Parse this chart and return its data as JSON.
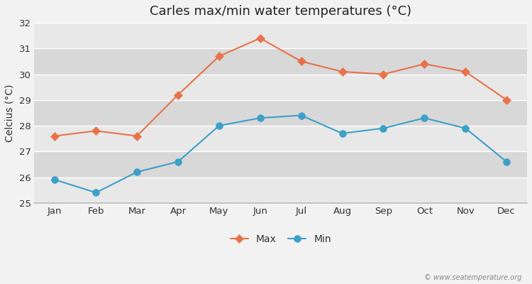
{
  "title": "Carles max/min water temperatures (°C)",
  "ylabel": "Celcius (°C)",
  "months": [
    "Jan",
    "Feb",
    "Mar",
    "Apr",
    "May",
    "Jun",
    "Jul",
    "Aug",
    "Sep",
    "Oct",
    "Nov",
    "Dec"
  ],
  "max_values": [
    27.6,
    27.8,
    27.6,
    29.2,
    30.7,
    31.4,
    30.5,
    30.1,
    30.0,
    30.4,
    30.1,
    29.0
  ],
  "min_values": [
    25.9,
    25.4,
    26.2,
    26.6,
    28.0,
    28.3,
    28.4,
    27.7,
    27.9,
    28.3,
    27.9,
    26.6
  ],
  "max_color": "#e8724a",
  "min_color": "#3ca0c8",
  "ylim": [
    25.0,
    32.0
  ],
  "yticks": [
    25,
    26,
    27,
    28,
    29,
    30,
    31,
    32
  ],
  "fig_bg_color": "#f2f2f2",
  "band_colors": [
    "#e8e8e8",
    "#d8d8d8"
  ],
  "grid_color": "#ffffff",
  "legend_labels": [
    "Max",
    "Min"
  ],
  "watermark": "© www.seatemperature.org",
  "title_fontsize": 13,
  "label_fontsize": 10,
  "tick_fontsize": 9.5
}
